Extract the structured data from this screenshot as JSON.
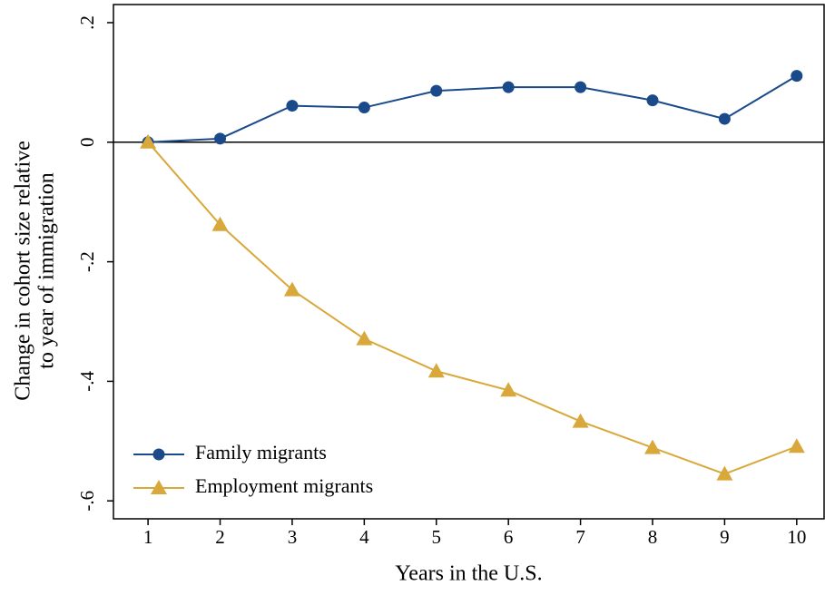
{
  "chart_data": {
    "type": "line",
    "xlabel": "Years in the U.S.",
    "ylabel": [
      "Change in cohort size relative",
      "to year of immigration"
    ],
    "x": [
      1,
      2,
      3,
      4,
      5,
      6,
      7,
      8,
      9,
      10
    ],
    "series": [
      {
        "name": "Family migrants",
        "color": "#1a4a8a",
        "marker": "circle",
        "values": [
          0,
          0.006,
          0.061,
          0.058,
          0.086,
          0.092,
          0.092,
          0.07,
          0.039,
          0.111
        ]
      },
      {
        "name": "Employment migrants",
        "color": "#d9a83a",
        "marker": "triangle",
        "values": [
          0,
          -0.138,
          -0.247,
          -0.329,
          -0.383,
          -0.415,
          -0.467,
          -0.511,
          -0.555,
          -0.509
        ]
      }
    ],
    "xlim": [
      0.52,
      10.38
    ],
    "xticks": [
      1,
      2,
      3,
      4,
      5,
      6,
      7,
      8,
      9,
      10
    ],
    "ylim": [
      -0.63,
      0.2303
    ],
    "yticks": [
      {
        "value": 0.2,
        "label": ".2"
      },
      0,
      {
        "value": -0.2,
        "label": "-.2"
      },
      {
        "value": -0.4,
        "label": "-.4"
      },
      {
        "value": -0.6,
        "label": "-.6"
      }
    ],
    "zero_line": true,
    "legend": "lower left"
  }
}
